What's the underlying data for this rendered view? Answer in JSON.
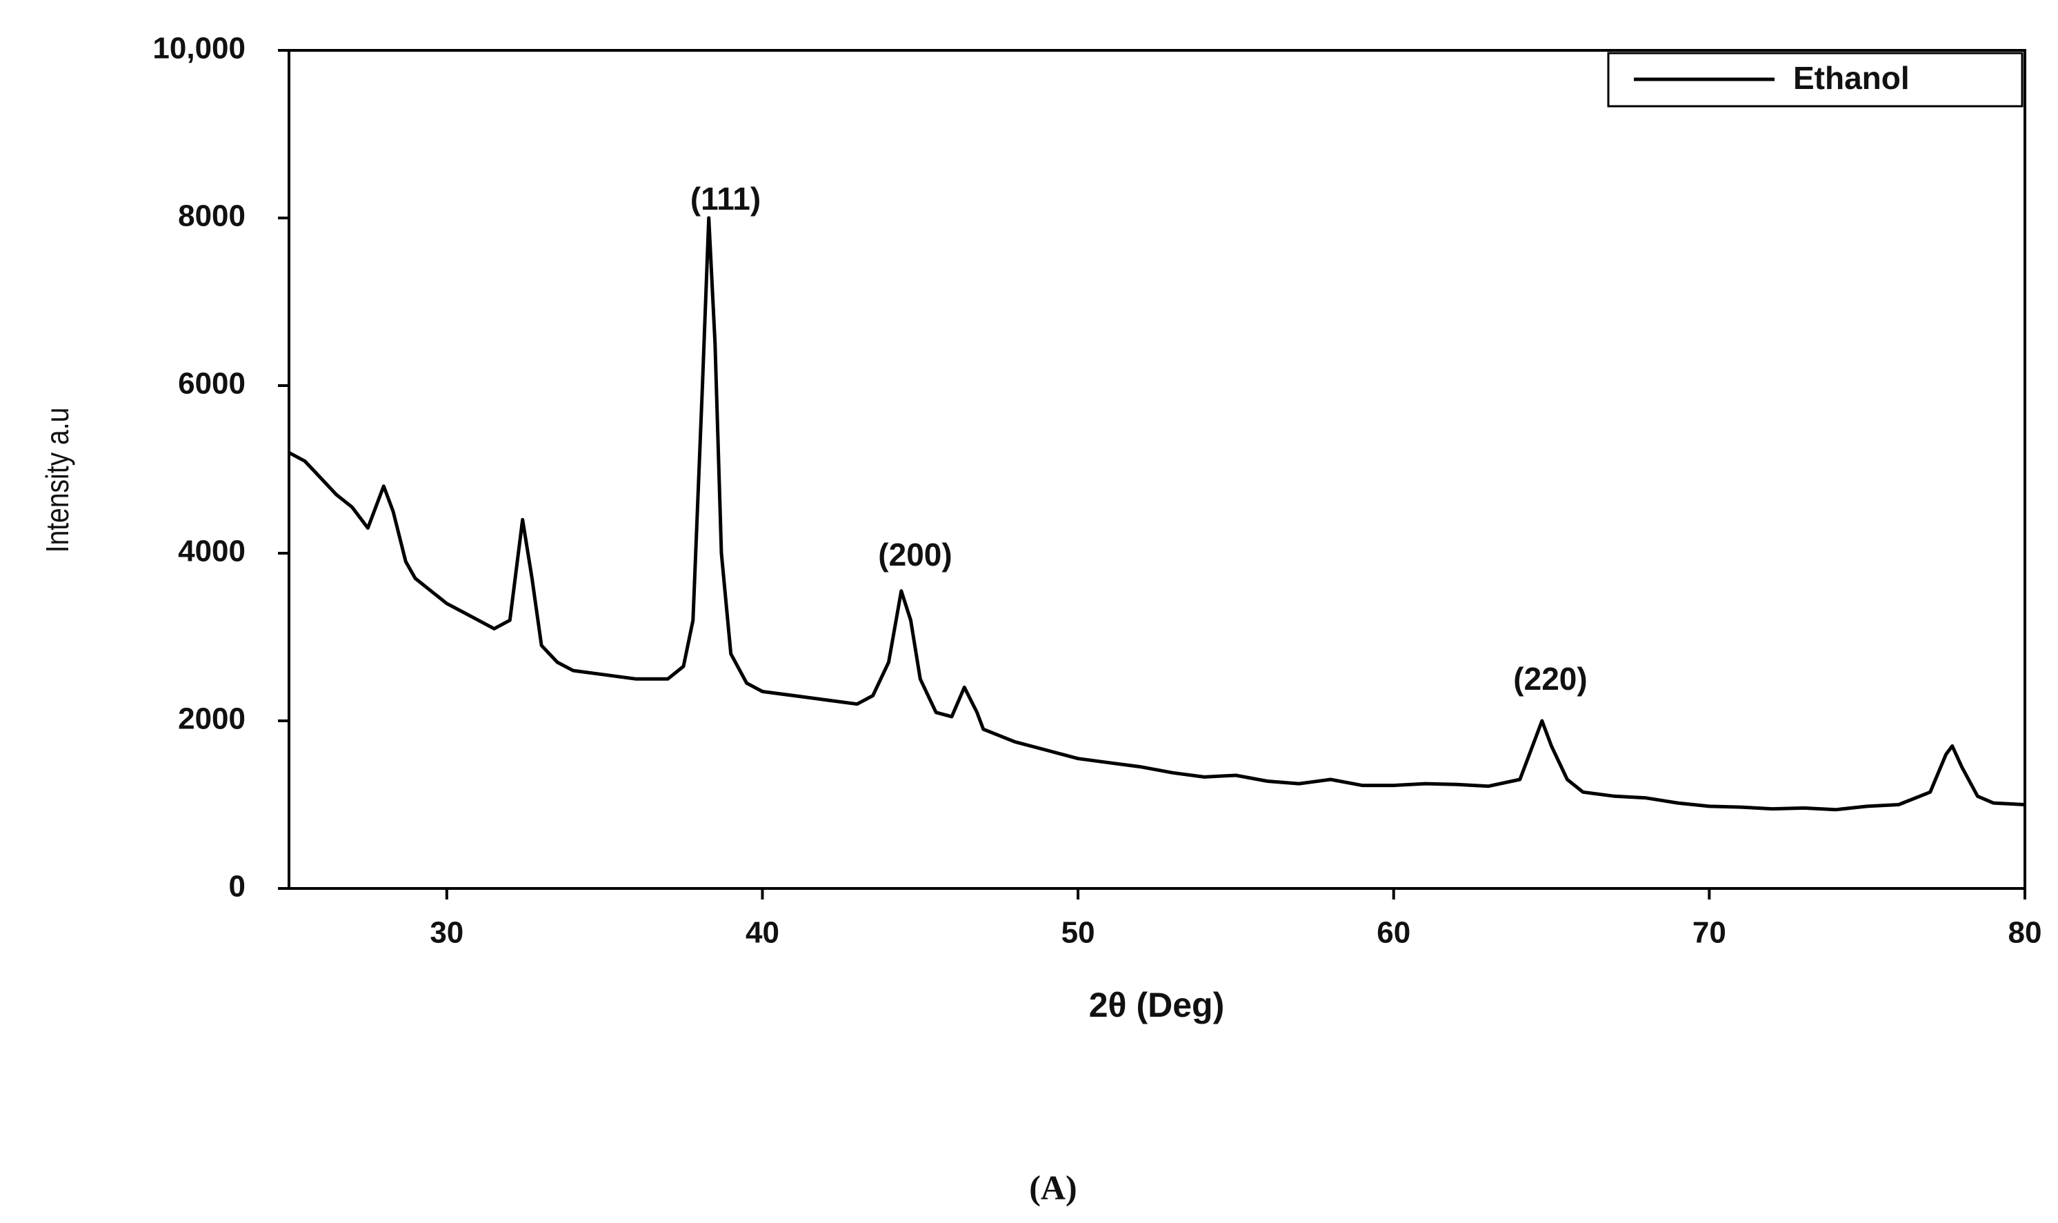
{
  "chart_data": {
    "type": "line",
    "x_label": "2θ (Deg)",
    "y_label": "Intensity a.u",
    "caption": "(A)",
    "annotations": [
      "(111)",
      "(200)",
      "(220)"
    ],
    "xlim": [
      25,
      80
    ],
    "xticks": [
      30,
      40,
      50,
      60,
      70,
      80
    ],
    "ylim": [
      0,
      10000
    ],
    "yticks": [
      0,
      2000,
      4000,
      6000,
      8000,
      {
        "value": 10000,
        "label": "10,000"
      }
    ],
    "legend": "top-right",
    "x": [
      25,
      25.5,
      26,
      26.5,
      27,
      27.5,
      27.8,
      28,
      28.3,
      28.7,
      29,
      29.5,
      30,
      30.5,
      31,
      31.5,
      32,
      32.2,
      32.4,
      32.7,
      33,
      33.5,
      34,
      35,
      36,
      37,
      37.5,
      37.8,
      38.1,
      38.3,
      38.5,
      38.7,
      39,
      39.5,
      40,
      41,
      42,
      43,
      43.5,
      44,
      44.4,
      44.7,
      45,
      45.5,
      46,
      46.4,
      46.8,
      47,
      48,
      49,
      50,
      51,
      52,
      53,
      54,
      55,
      56,
      57,
      58,
      59,
      60,
      61,
      62,
      63,
      64,
      64.4,
      64.7,
      65,
      65.5,
      66,
      67,
      68,
      69,
      70,
      71,
      72,
      73,
      74,
      75,
      76,
      77,
      77.5,
      77.7,
      78,
      78.5,
      79,
      80
    ],
    "series": [
      {
        "name": "Ethanol",
        "color": "#000000",
        "values": [
          5200,
          5100,
          4900,
          4700,
          4550,
          4300,
          4600,
          4800,
          4500,
          3900,
          3700,
          3550,
          3400,
          3300,
          3200,
          3100,
          3200,
          3800,
          4400,
          3700,
          2900,
          2700,
          2600,
          2550,
          2500,
          2500,
          2650,
          3200,
          6000,
          8000,
          6500,
          4000,
          2800,
          2450,
          2350,
          2300,
          2250,
          2200,
          2300,
          2700,
          3550,
          3200,
          2500,
          2100,
          2050,
          2400,
          2100,
          1900,
          1750,
          1650,
          1550,
          1500,
          1450,
          1380,
          1330,
          1350,
          1280,
          1250,
          1300,
          1230,
          1230,
          1250,
          1240,
          1220,
          1300,
          1700,
          2000,
          1700,
          1300,
          1150,
          1100,
          1080,
          1020,
          980,
          970,
          950,
          960,
          940,
          980,
          1000,
          1150,
          1600,
          1700,
          1450,
          1100,
          1020,
          1000
        ]
      }
    ]
  }
}
